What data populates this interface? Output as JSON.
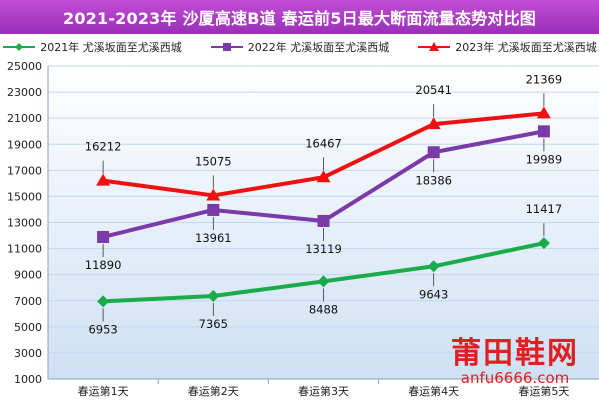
{
  "title": "2021-2023年 沙厦高速B道  春运前5日最大断面流量态势对比图",
  "colors": {
    "title_bg": "#a63bc2",
    "grid": "#c4d7ef",
    "axis_text": "#222222"
  },
  "watermark": {
    "line1": "莆田鞋网",
    "line2": "anfu6666.com"
  },
  "chart_data": {
    "type": "line",
    "title": "2021-2023年 沙厦高速B道  春运前5日最大断面流量态势对比图",
    "categories": [
      "春运第1天",
      "春运第2天",
      "春运第3天",
      "春运第4天",
      "春运第5天"
    ],
    "ylim": [
      1000,
      25000
    ],
    "yticks": [
      1000,
      3000,
      5000,
      7000,
      9000,
      11000,
      13000,
      15000,
      17000,
      19000,
      21000,
      23000,
      25000
    ],
    "grid": true,
    "legend_position": "top",
    "series": [
      {
        "name": "2021年  尤溪坂面至尤溪西城",
        "color": "#1aab4b",
        "marker": "diamond",
        "values": [
          6953,
          7365,
          8488,
          9643,
          11417
        ]
      },
      {
        "name": "2022年  尤溪坂面至尤溪西城",
        "color": "#7a3aa8",
        "marker": "square",
        "values": [
          11890,
          13961,
          13119,
          18386,
          19989
        ]
      },
      {
        "name": "2023年  尤溪坂面至尤溪西城",
        "color": "#ee1111",
        "marker": "triangle",
        "values": [
          16212,
          15075,
          16467,
          20541,
          21369
        ]
      }
    ]
  }
}
